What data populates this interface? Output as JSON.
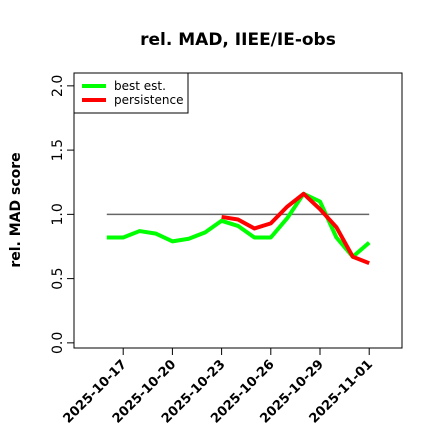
{
  "chart_data": {
    "type": "line",
    "title": "rel. MAD, IIEE/IE-obs",
    "xlabel": "",
    "ylabel": "rel. MAD score",
    "xlim": [
      "2025-10-14",
      "2025-11-03"
    ],
    "ylim": [
      -0.04,
      2.1
    ],
    "xticks": [
      "2025-10-17",
      "2025-10-20",
      "2025-10-23",
      "2025-10-26",
      "2025-10-29",
      "2025-11-01"
    ],
    "yticks": [
      {
        "value": 0.0,
        "label": "0.0"
      },
      {
        "value": 0.5,
        "label": "0.5"
      },
      {
        "value": 1.0,
        "label": "1.0"
      },
      {
        "value": 1.5,
        "label": "1.5"
      },
      {
        "value": 2.0,
        "label": "2.0"
      }
    ],
    "reference_line": {
      "y": 1.0,
      "x_start": "2025-10-16",
      "x_end": "2025-11-01",
      "color": "#666666"
    },
    "legend_position": "top-left",
    "series": [
      {
        "name": "best est.",
        "color": "#00ff00",
        "x": [
          "2025-10-16",
          "2025-10-17",
          "2025-10-18",
          "2025-10-19",
          "2025-10-20",
          "2025-10-21",
          "2025-10-22",
          "2025-10-23",
          "2025-10-24",
          "2025-10-25",
          "2025-10-26",
          "2025-10-27",
          "2025-10-28",
          "2025-10-29",
          "2025-10-30",
          "2025-10-31",
          "2025-11-01"
        ],
        "y": [
          0.82,
          0.82,
          0.87,
          0.85,
          0.79,
          0.81,
          0.86,
          0.95,
          0.91,
          0.82,
          0.82,
          0.97,
          1.16,
          1.1,
          0.82,
          0.67,
          0.78
        ]
      },
      {
        "name": "persistence",
        "color": "#ff0000",
        "x": [
          "2025-10-23",
          "2025-10-24",
          "2025-10-25",
          "2025-10-26",
          "2025-10-27",
          "2025-10-28",
          "2025-10-29",
          "2025-10-30",
          "2025-10-31",
          "2025-11-01"
        ],
        "y": [
          0.98,
          0.96,
          0.89,
          0.93,
          1.06,
          1.16,
          1.04,
          0.9,
          0.67,
          0.62
        ]
      }
    ]
  }
}
